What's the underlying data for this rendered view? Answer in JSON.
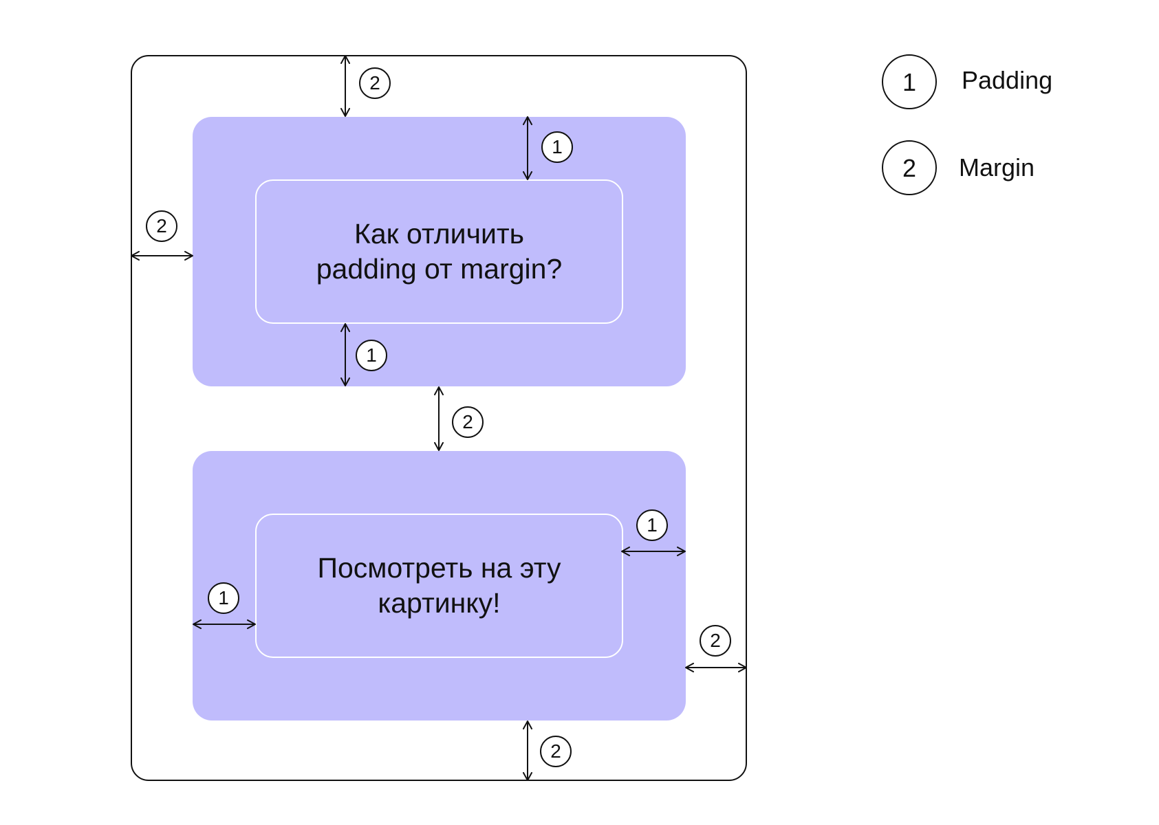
{
  "boxes": [
    {
      "text": "Как отличить\npadding от margin?"
    },
    {
      "text": "Посмотреть на эту\nкартинку!"
    }
  ],
  "legend": [
    {
      "number": "1",
      "label": "Padding"
    },
    {
      "number": "2",
      "label": "Margin"
    }
  ],
  "colors": {
    "card": "#c0bcfc",
    "content_border": "#ffffff",
    "line": "#111111",
    "background": "#ffffff"
  },
  "icons": [
    "double-arrow-icon",
    "number-badge-icon"
  ]
}
